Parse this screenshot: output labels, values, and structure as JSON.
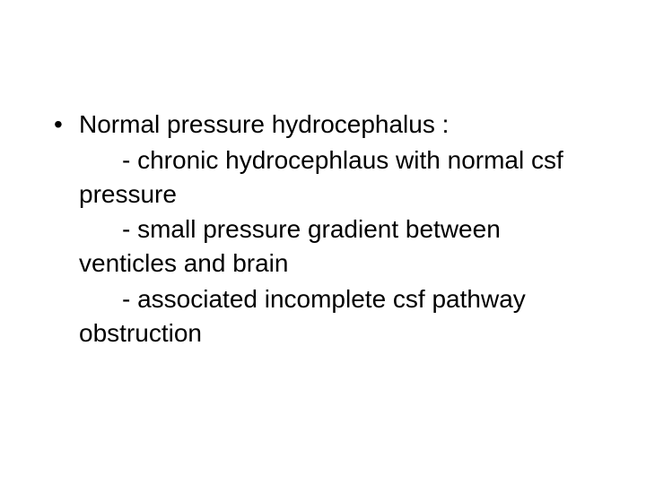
{
  "slide": {
    "background_color": "#ffffff",
    "text_color": "#000000",
    "font_family": "Arial",
    "font_size_pt": 28,
    "bullet": {
      "marker": "•",
      "heading": "Normal pressure hydrocephalus :",
      "sub_items": [
        {
          "first_line": "- chronic hydrocephlaus with normal csf",
          "cont_line": "pressure"
        },
        {
          "first_line": "- small pressure gradient between",
          "cont_line": "venticles and brain"
        },
        {
          "first_line": "- associated incomplete csf pathway",
          "cont_line": "obstruction"
        }
      ]
    }
  }
}
